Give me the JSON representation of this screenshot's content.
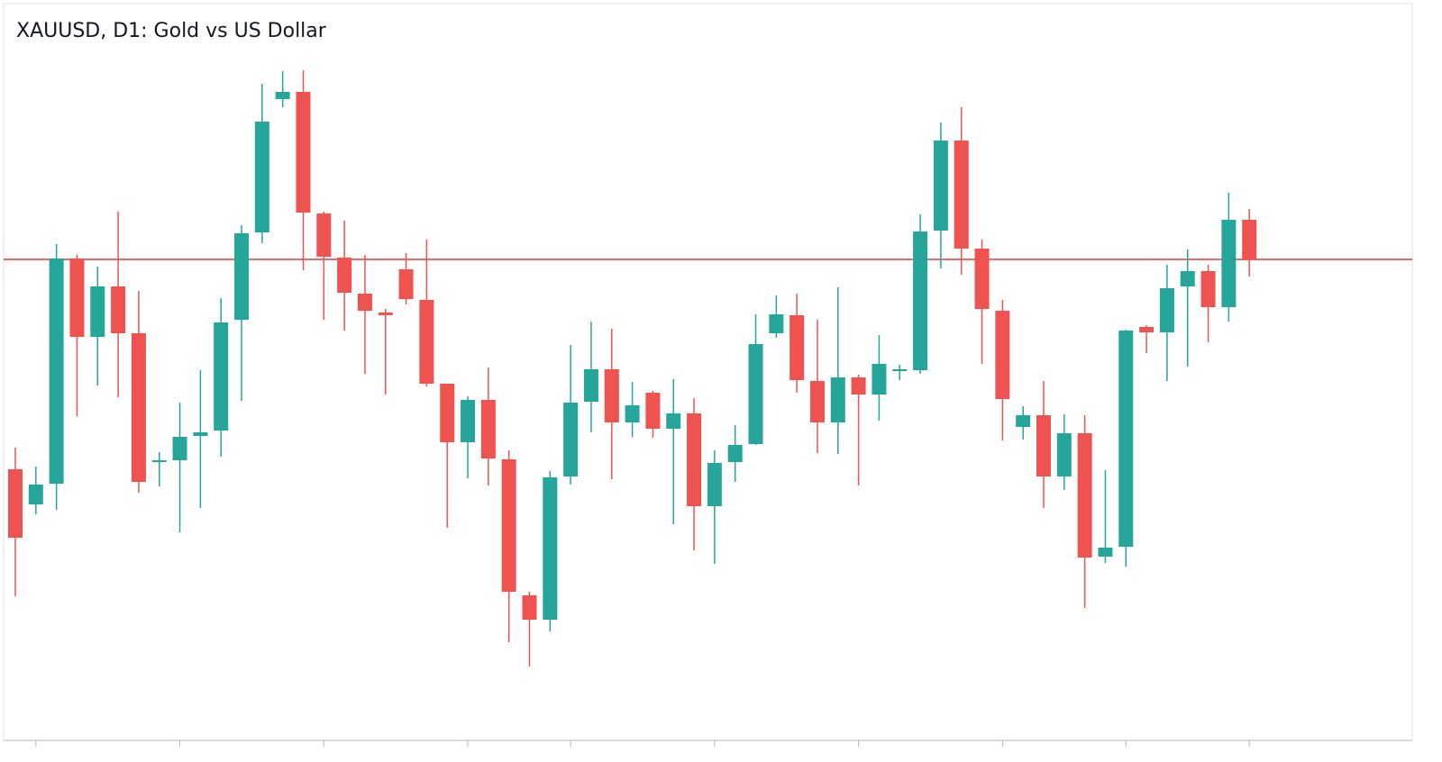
{
  "chart_data": {
    "type": "candlestick",
    "title": "XAUUSD, D1: Gold vs US Dollar",
    "categories": [
      null,
      null,
      null,
      null,
      null,
      null,
      null,
      null,
      null,
      null,
      null,
      null,
      null,
      null,
      null,
      null,
      null,
      null,
      null,
      null,
      null,
      null,
      null,
      null,
      null,
      null,
      null,
      null,
      null,
      null,
      null,
      null,
      null,
      null,
      null,
      null,
      null,
      null,
      null,
      null,
      null,
      null,
      null,
      null,
      null,
      null,
      null,
      null,
      null,
      null,
      null,
      null,
      null,
      null,
      null,
      null,
      null,
      null,
      null,
      null,
      null
    ],
    "open": [
      301,
      262,
      285,
      535,
      448,
      504,
      452,
      309,
      311,
      338,
      344,
      467,
      564,
      712,
      720,
      585,
      536,
      496,
      475,
      523,
      489,
      396,
      331,
      378,
      312,
      161,
      134,
      293,
      376,
      412,
      353,
      386,
      346,
      363,
      260,
      309,
      329,
      452,
      472,
      399,
      353,
      403,
      384,
      410,
      411,
      566,
      666,
      546,
      477,
      348,
      361,
      293,
      341,
      204,
      215,
      459,
      453,
      504,
      521,
      481,
      578
    ],
    "high": [
      325,
      304,
      551,
      539,
      526,
      587,
      499,
      320,
      375,
      411,
      491,
      572,
      729,
      743,
      744,
      587,
      577,
      539,
      479,
      541,
      556,
      396,
      382,
      414,
      322,
      165,
      299,
      439,
      465,
      457,
      398,
      388,
      401,
      380,
      322,
      350,
      473,
      494,
      496,
      467,
      503,
      406,
      450,
      417,
      584,
      686,
      703,
      556,
      489,
      371,
      399,
      362,
      361,
      300,
      456,
      461,
      528,
      545,
      528,
      608,
      590
    ],
    "low": [
      160,
      251,
      256,
      360,
      394,
      381,
      275,
      282,
      231,
      258,
      315,
      377,
      552,
      703,
      522,
      467,
      455,
      407,
      384,
      484,
      393,
      236,
      291,
      283,
      109,
      82,
      121,
      284,
      342,
      290,
      337,
      336,
      240,
      211,
      196,
      287,
      328,
      447,
      386,
      319,
      318,
      283,
      355,
      400,
      407,
      524,
      517,
      418,
      333,
      334,
      258,
      278,
      147,
      197,
      193,
      430,
      399,
      415,
      442,
      465,
      515
    ],
    "close": [
      225,
      284,
      535,
      448,
      504,
      452,
      287,
      311,
      337,
      342,
      464,
      563,
      687,
      720,
      586,
      537,
      497,
      477,
      472,
      490,
      396,
      331,
      378,
      313,
      165,
      134,
      292,
      375,
      412,
      353,
      372,
      346,
      363,
      260,
      308,
      328,
      440,
      473,
      400,
      353,
      403,
      384,
      418,
      412,
      565,
      666,
      546,
      479,
      379,
      361,
      293,
      341,
      203,
      214,
      455,
      453,
      502,
      521,
      481,
      578,
      534
    ],
    "up_color": "#26a69a",
    "down_color": "#ef5350",
    "hline": 534,
    "hline_color": "#e53935",
    "ylim": [
      0,
      822
    ],
    "xticks": [
      1,
      8,
      15,
      22,
      27,
      34,
      41,
      48,
      54,
      60
    ]
  }
}
